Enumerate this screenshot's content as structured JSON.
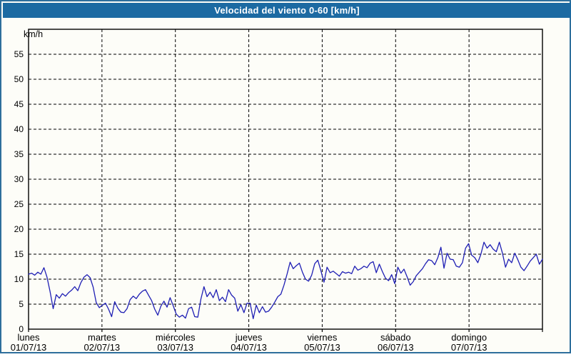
{
  "window": {
    "title": "Velocidad del viento 0-60 [km/h]"
  },
  "colors": {
    "title_bar": "#1c6aa2",
    "title_text": "#ffffff",
    "outer_border": "#2e6f9c",
    "background": "#fdfdf8",
    "plot_border": "#000000",
    "grid": "#000000",
    "axis_text": "#000000",
    "series_line": "#1f1fb4"
  },
  "chart_data": {
    "type": "line",
    "title": "Velocidad del viento 0-60 [km/h]",
    "ylabel": "km/h",
    "xlabel": "",
    "ylim": [
      0,
      60
    ],
    "ytick_step": 5,
    "ytick_labels": [
      "0",
      "5",
      "10",
      "15",
      "20",
      "25",
      "30",
      "35",
      "40",
      "45",
      "50",
      "55"
    ],
    "grid": true,
    "legend_position": "none",
    "days": [
      {
        "name": "lunes",
        "date": "01/07/13"
      },
      {
        "name": "martes",
        "date": "02/07/13"
      },
      {
        "name": "miércoles",
        "date": "03/07/13"
      },
      {
        "name": "jueves",
        "date": "04/07/13"
      },
      {
        "name": "viernes",
        "date": "05/07/13"
      },
      {
        "name": "sábado",
        "date": "06/07/13"
      },
      {
        "name": "domingo",
        "date": "07/07/13"
      }
    ],
    "points_per_day": 24,
    "series": [
      {
        "name": "Velocidad del viento",
        "color": "#1f1fb4",
        "values": [
          11.0,
          11.2,
          10.8,
          11.4,
          11.0,
          12.3,
          10.4,
          7.5,
          4.1,
          6.9,
          6.2,
          7.1,
          6.6,
          7.3,
          7.8,
          8.5,
          7.7,
          9.3,
          10.4,
          10.9,
          10.3,
          8.4,
          5.3,
          4.3,
          4.8,
          5.2,
          4.0,
          2.5,
          5.5,
          4.2,
          3.4,
          3.3,
          4.1,
          5.9,
          6.6,
          6.1,
          7.0,
          7.6,
          7.9,
          6.8,
          5.7,
          4.0,
          2.8,
          4.6,
          5.6,
          4.4,
          6.3,
          4.7,
          3.0,
          2.4,
          2.8,
          2.2,
          4.1,
          4.4,
          2.5,
          2.4,
          6.0,
          8.5,
          6.5,
          7.4,
          6.3,
          7.9,
          5.7,
          6.4,
          5.5,
          7.9,
          6.8,
          6.2,
          3.6,
          4.9,
          3.3,
          5.2,
          5.2,
          2.1,
          4.8,
          3.3,
          4.5,
          3.4,
          3.6,
          4.4,
          5.4,
          6.5,
          7.0,
          8.8,
          11.0,
          13.4,
          12.1,
          12.7,
          13.2,
          11.4,
          10.0,
          9.6,
          10.8,
          13.1,
          13.8,
          11.7,
          9.4,
          12.4,
          11.3,
          11.6,
          11.1,
          10.6,
          11.5,
          11.2,
          11.4,
          11.1,
          12.6,
          11.8,
          12.1,
          12.6,
          12.3,
          13.2,
          13.5,
          11.3,
          13.0,
          11.5,
          10.2,
          9.7,
          10.9,
          9.1,
          12.4,
          11.2,
          12.0,
          10.5,
          8.8,
          9.5,
          10.7,
          11.4,
          12.1,
          13.1,
          13.9,
          13.7,
          12.9,
          14.3,
          16.4,
          12.2,
          15.2,
          14.0,
          13.9,
          12.6,
          12.4,
          13.3,
          16.2,
          17.1,
          14.8,
          14.3,
          13.3,
          15.0,
          17.4,
          16.2,
          16.9,
          16.0,
          15.5,
          17.4,
          15.2,
          12.4,
          14.0,
          13.3,
          15.2,
          13.9,
          12.4,
          11.7,
          12.6,
          13.6,
          14.3,
          15.0,
          13.0,
          14.0
        ]
      }
    ]
  }
}
